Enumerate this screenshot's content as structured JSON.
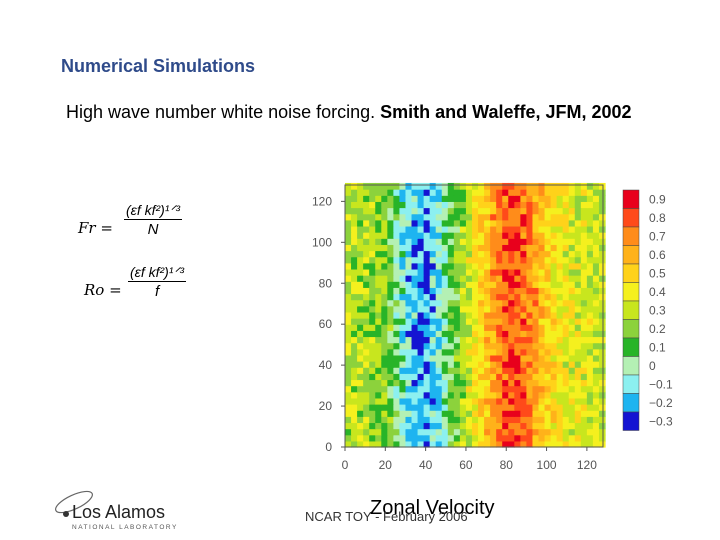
{
  "slide": {
    "title": "Numerical Simulations",
    "subtitle_plain": "High wave number white noise forcing.  ",
    "subtitle_bold": "Smith and Waleffe, JFM, 2002",
    "eq_fr_lhs": "Fr =",
    "eq_fr_num": "(εf kf²)¹ᐟ³",
    "eq_fr_den": "N",
    "eq_ro_lhs": "Ro =",
    "eq_ro_num": "(εf kf²)¹ᐟ³",
    "eq_ro_den": "f",
    "footer": "NCAR TOY - February 2006",
    "plot_title": "Zonal Velocity",
    "logo_name": "Los Alamos",
    "logo_sub": "NATIONAL LABORATORY"
  },
  "chart_data": {
    "type": "heatmap",
    "title": "Zonal Velocity",
    "xlabel": "",
    "ylabel": "",
    "x_ticks": [
      0,
      20,
      40,
      60,
      80,
      100,
      120
    ],
    "y_ticks": [
      0,
      20,
      40,
      60,
      80,
      100,
      120
    ],
    "xlim": [
      0,
      128
    ],
    "ylim": [
      0,
      128
    ],
    "colorbar_levels": [
      "0.9",
      "0.8",
      "0.7",
      "0.6",
      "0.5",
      "0.4",
      "0.3",
      "0.2",
      "0.1",
      "0",
      "−0.1",
      "−0.2",
      "−0.3"
    ],
    "colorbar_colors": [
      "#e8001c",
      "#ff4a1a",
      "#ff8c1a",
      "#ffb21a",
      "#ffd21a",
      "#f5f01e",
      "#c8e61e",
      "#8cd23c",
      "#28b428",
      "#b4f0b4",
      "#8cf0f0",
      "#1eb4f0",
      "#1414d2"
    ],
    "zonal_profile": {
      "x": [
        0,
        10,
        20,
        25,
        30,
        35,
        40,
        45,
        50,
        55,
        60,
        65,
        70,
        75,
        80,
        85,
        90,
        95,
        100,
        105,
        110,
        120,
        128
      ],
      "u": [
        0.28,
        0.25,
        0.2,
        0.05,
        -0.1,
        -0.18,
        -0.2,
        -0.12,
        0.0,
        0.15,
        0.3,
        0.42,
        0.55,
        0.68,
        0.78,
        0.8,
        0.75,
        0.62,
        0.5,
        0.42,
        0.38,
        0.33,
        0.28
      ]
    }
  }
}
